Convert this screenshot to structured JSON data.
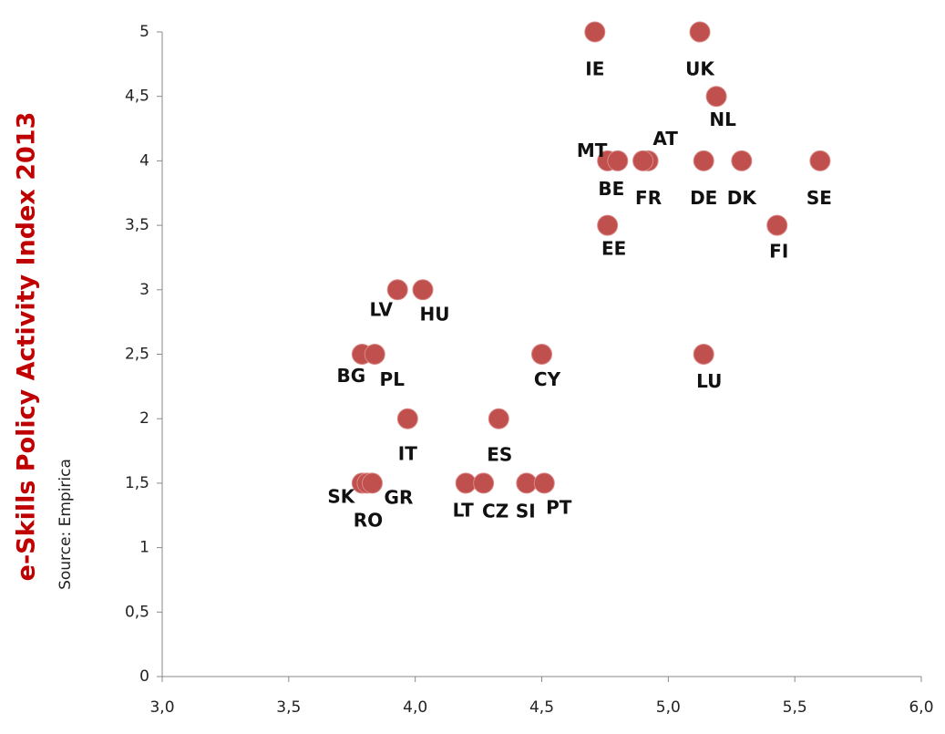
{
  "chart_data": {
    "type": "scatter",
    "ylabel": "e-Skills Policy Activity Index 2013",
    "source": "Source: Empirica",
    "color": "#c0504d",
    "point_labels": [
      "IE",
      "UK",
      "NL",
      "MT",
      "BE",
      "AT",
      "FR",
      "DE",
      "DK",
      "SE",
      "EE",
      "FI",
      "LV",
      "HU",
      "BG",
      "PL",
      "CY",
      "LU",
      "IT",
      "ES",
      "SK",
      "RO",
      "GR",
      "LT",
      "CZ",
      "SI",
      "PT"
    ],
    "x": [
      4.71,
      5.125,
      5.19,
      4.76,
      4.8,
      4.92,
      4.9,
      5.14,
      5.29,
      5.6,
      4.76,
      5.43,
      3.93,
      4.03,
      3.79,
      3.84,
      4.5,
      5.14,
      3.97,
      4.33,
      3.79,
      3.81,
      3.83,
      4.2,
      4.27,
      4.44,
      4.51
    ],
    "values": [
      5,
      5,
      4.5,
      4,
      4,
      4,
      4,
      4,
      4,
      4,
      3.5,
      3.5,
      3,
      3,
      2.5,
      2.5,
      2.5,
      2.5,
      2,
      2,
      1.5,
      1.5,
      1.5,
      1.5,
      1.5,
      1.5,
      1.5
    ],
    "xlim": [
      3,
      6
    ],
    "xticks": [
      {
        "value": 3,
        "label": "3,0"
      },
      {
        "value": 3.5,
        "label": "3,5"
      },
      {
        "value": 4,
        "label": "4,0"
      },
      {
        "value": 4.5,
        "label": "4,5"
      },
      {
        "value": 5,
        "label": "5,0"
      },
      {
        "value": 5.5,
        "label": "5,5"
      },
      {
        "value": 6,
        "label": "6,0"
      }
    ],
    "ylim": [
      0,
      5
    ],
    "yticks": [
      0,
      {
        "value": 0.5,
        "label": "0,5"
      },
      1,
      {
        "value": 1.5,
        "label": "1,5"
      },
      2,
      {
        "value": 2.5,
        "label": "2,5"
      },
      3,
      {
        "value": 3.5,
        "label": "3,5"
      },
      4,
      {
        "value": 4.5,
        "label": "4,5"
      },
      5
    ]
  }
}
